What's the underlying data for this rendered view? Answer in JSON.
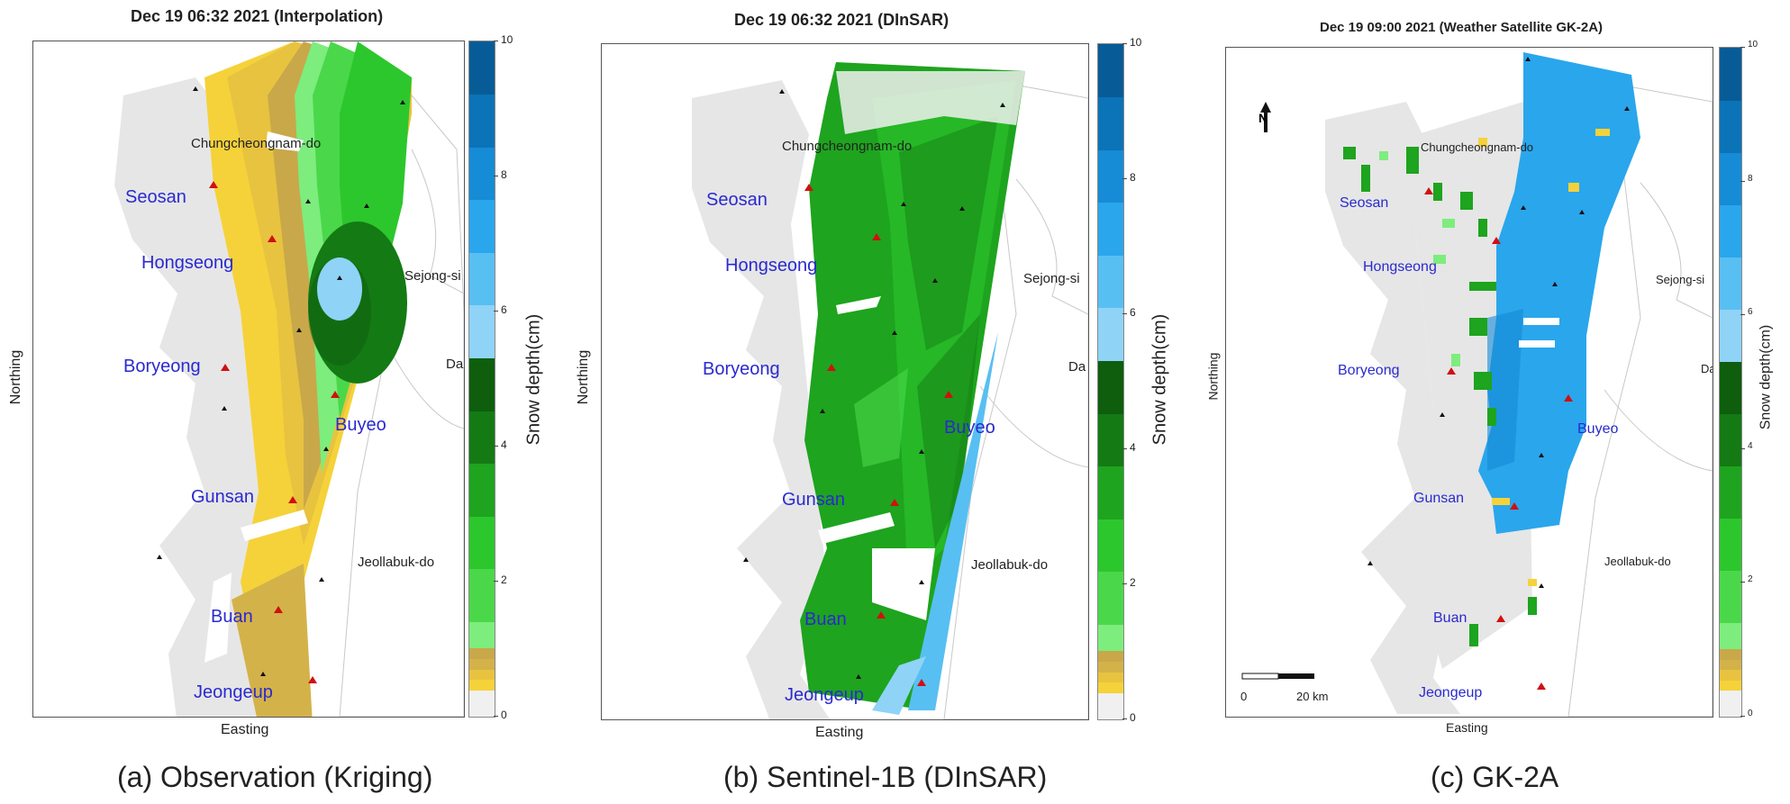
{
  "colorbar": {
    "label": "Snow depth(cm)",
    "range": [
      0,
      10
    ],
    "ticks": [
      "0",
      "2",
      "4",
      "6",
      "8",
      "10"
    ],
    "colors": [
      "#f0f0f0",
      "#f5d23a",
      "#e8c340",
      "#d4b24a",
      "#c9a84a",
      "#7ded7d",
      "#4ad84a",
      "#2cc72c",
      "#1ea41e",
      "#147a14",
      "#0e5e0e",
      "#8fd3f7",
      "#58bff2",
      "#2aa6ec",
      "#168bd6",
      "#0b73b8",
      "#075c97"
    ]
  },
  "panels": [
    {
      "title": "Dec 19 06:32 2021 (Interpolation)",
      "caption": "(a) Observation (Kriging)",
      "xlabel": "Easting",
      "ylabel": "Northing",
      "cities": [
        "Seosan",
        "Hongseong",
        "Boryeong",
        "Buyeo",
        "Gunsan",
        "Buan",
        "Jeongeup"
      ],
      "provinces": [
        "Chungcheongnam-do",
        "Sejong-si",
        "Da",
        "Jeollabuk-do"
      ]
    },
    {
      "title": "Dec 19 06:32 2021 (DInSAR)",
      "caption": "(b) Sentinel-1B (DInSAR)",
      "xlabel": "Easting",
      "ylabel": "Northing",
      "cities": [
        "Seosan",
        "Hongseong",
        "Boryeong",
        "Buyeo",
        "Gunsan",
        "Buan",
        "Jeongeup"
      ],
      "provinces": [
        "Chungcheongnam-do",
        "Sejong-si",
        "Da",
        "Jeollabuk-do"
      ]
    },
    {
      "title": "Dec 19 09:00 2021 (Weather Satellite GK-2A)",
      "caption": "(c) GK-2A",
      "xlabel": "Easting",
      "ylabel": "Northing",
      "cities": [
        "Seosan",
        "Hongseong",
        "Boryeong",
        "Buyeo",
        "Gunsan",
        "Buan",
        "Jeongeup"
      ],
      "provinces": [
        "Chungcheongnam-do",
        "Sejong-si",
        "Da",
        "Jeollabuk-do"
      ],
      "scalebar": {
        "start": "0",
        "end": "20 km"
      },
      "north": "N"
    }
  ]
}
